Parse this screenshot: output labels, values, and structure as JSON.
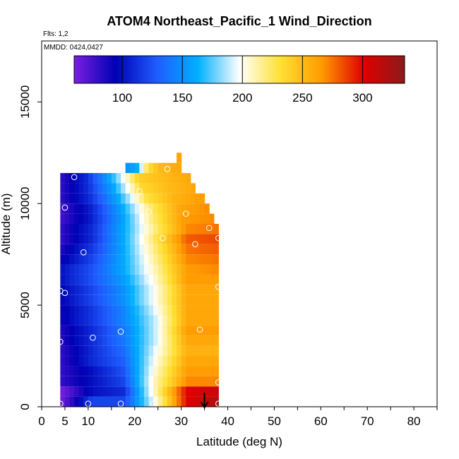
{
  "title": "ATOM4 Northeast_Pacific_1 Wind_Direction",
  "flights_text": "Flts: 1,2",
  "dates_text": "MMDD: 0424,0427",
  "chart_data": {
    "type": "heatmap",
    "xlabel": "Latitude (deg N)",
    "ylabel": "Altitude (m)",
    "xlim": [
      0,
      85
    ],
    "ylim": [
      0,
      18000
    ],
    "x_ticks": [
      0,
      5,
      10,
      20,
      30,
      40,
      50,
      60,
      70,
      80
    ],
    "x_ticks_unlabeled": [
      15,
      25,
      35,
      45,
      55,
      65,
      75,
      85
    ],
    "y_ticks": [
      0,
      5000,
      10000,
      15000
    ],
    "grid": false,
    "colorbar": {
      "position": "top-inside",
      "range": [
        60,
        335
      ],
      "ticks": [
        100,
        150,
        200,
        250,
        300
      ],
      "colors": [
        "#7a1fe0",
        "#0000b4",
        "#1f5cff",
        "#00b0ff",
        "#ffffff",
        "#ffe033",
        "#ff9a00",
        "#e00000",
        "#8b1a1a"
      ]
    },
    "bin_size_deg": 1,
    "altitude_band_top_m": [
      500,
      1000,
      1500,
      2000,
      2500,
      3000,
      3500,
      4000,
      4500,
      5000,
      5500,
      6000,
      6500,
      7000,
      7500,
      8000,
      8500,
      9000,
      9500,
      10000,
      10500,
      11000,
      11500,
      12000,
      12500
    ],
    "band_lat_start": [
      4,
      4,
      4,
      4,
      4,
      4,
      4,
      4,
      4,
      4,
      4,
      4,
      4,
      4,
      4,
      4,
      4,
      4,
      4,
      4,
      4,
      4,
      4,
      18,
      29
    ],
    "band_lat_end": [
      38,
      38,
      38,
      38,
      38,
      38,
      38,
      38,
      38,
      38,
      38,
      38,
      38,
      38,
      38,
      38,
      38,
      38,
      37,
      36,
      35,
      33,
      32,
      30,
      30
    ],
    "band_direction_profile": [
      [
        60,
        120,
        120,
        200,
        300,
        320
      ],
      [
        60,
        100,
        110,
        210,
        300,
        310
      ],
      [
        80,
        100,
        120,
        210,
        270,
        270
      ],
      [
        80,
        100,
        125,
        205,
        265,
        265
      ],
      [
        80,
        110,
        130,
        200,
        260,
        260
      ],
      [
        80,
        110,
        135,
        195,
        255,
        255
      ],
      [
        85,
        110,
        140,
        190,
        260,
        260
      ],
      [
        85,
        110,
        140,
        190,
        265,
        265
      ],
      [
        90,
        115,
        145,
        190,
        260,
        260
      ],
      [
        90,
        115,
        145,
        195,
        260,
        260
      ],
      [
        95,
        120,
        150,
        200,
        260,
        260
      ],
      [
        95,
        120,
        150,
        200,
        260,
        260
      ],
      [
        100,
        125,
        155,
        205,
        265,
        265
      ],
      [
        100,
        125,
        160,
        210,
        265,
        270
      ],
      [
        90,
        120,
        160,
        215,
        270,
        275
      ],
      [
        85,
        115,
        160,
        220,
        275,
        280
      ],
      [
        80,
        110,
        160,
        225,
        280,
        285
      ],
      [
        80,
        110,
        160,
        220,
        270,
        275
      ],
      [
        75,
        105,
        155,
        220,
        265,
        270
      ],
      [
        75,
        105,
        155,
        220,
        260,
        270
      ],
      [
        80,
        110,
        160,
        230,
        255,
        265
      ],
      [
        80,
        110,
        160,
        235,
        250,
        260
      ],
      [
        80,
        110,
        165,
        240,
        250,
        260
      ],
      [
        150,
        160,
        230,
        250,
        255,
        260
      ],
      [
        255,
        255,
        260,
        260,
        260,
        260
      ]
    ],
    "sample_points": [
      {
        "lat": 4,
        "alt": 150
      },
      {
        "lat": 10,
        "alt": 150
      },
      {
        "lat": 17,
        "alt": 150
      },
      {
        "lat": 24,
        "alt": 150
      },
      {
        "lat": 38,
        "alt": 150
      },
      {
        "lat": 38,
        "alt": 1200
      },
      {
        "lat": 4,
        "alt": 3200
      },
      {
        "lat": 11,
        "alt": 3400
      },
      {
        "lat": 17,
        "alt": 3700
      },
      {
        "lat": 34,
        "alt": 3800
      },
      {
        "lat": 4,
        "alt": 5700
      },
      {
        "lat": 5,
        "alt": 5600
      },
      {
        "lat": 38,
        "alt": 5900
      },
      {
        "lat": 23,
        "alt": 6300
      },
      {
        "lat": 9,
        "alt": 7600
      },
      {
        "lat": 33,
        "alt": 8000
      },
      {
        "lat": 26,
        "alt": 8300
      },
      {
        "lat": 38,
        "alt": 8300
      },
      {
        "lat": 36,
        "alt": 8800
      },
      {
        "lat": 23,
        "alt": 9600
      },
      {
        "lat": 31,
        "alt": 9500
      },
      {
        "lat": 5,
        "alt": 9800
      },
      {
        "lat": 21,
        "alt": 10600
      },
      {
        "lat": 7,
        "alt": 11300
      },
      {
        "lat": 27,
        "alt": 11700
      }
    ],
    "marker_arrow_lat": 35
  }
}
